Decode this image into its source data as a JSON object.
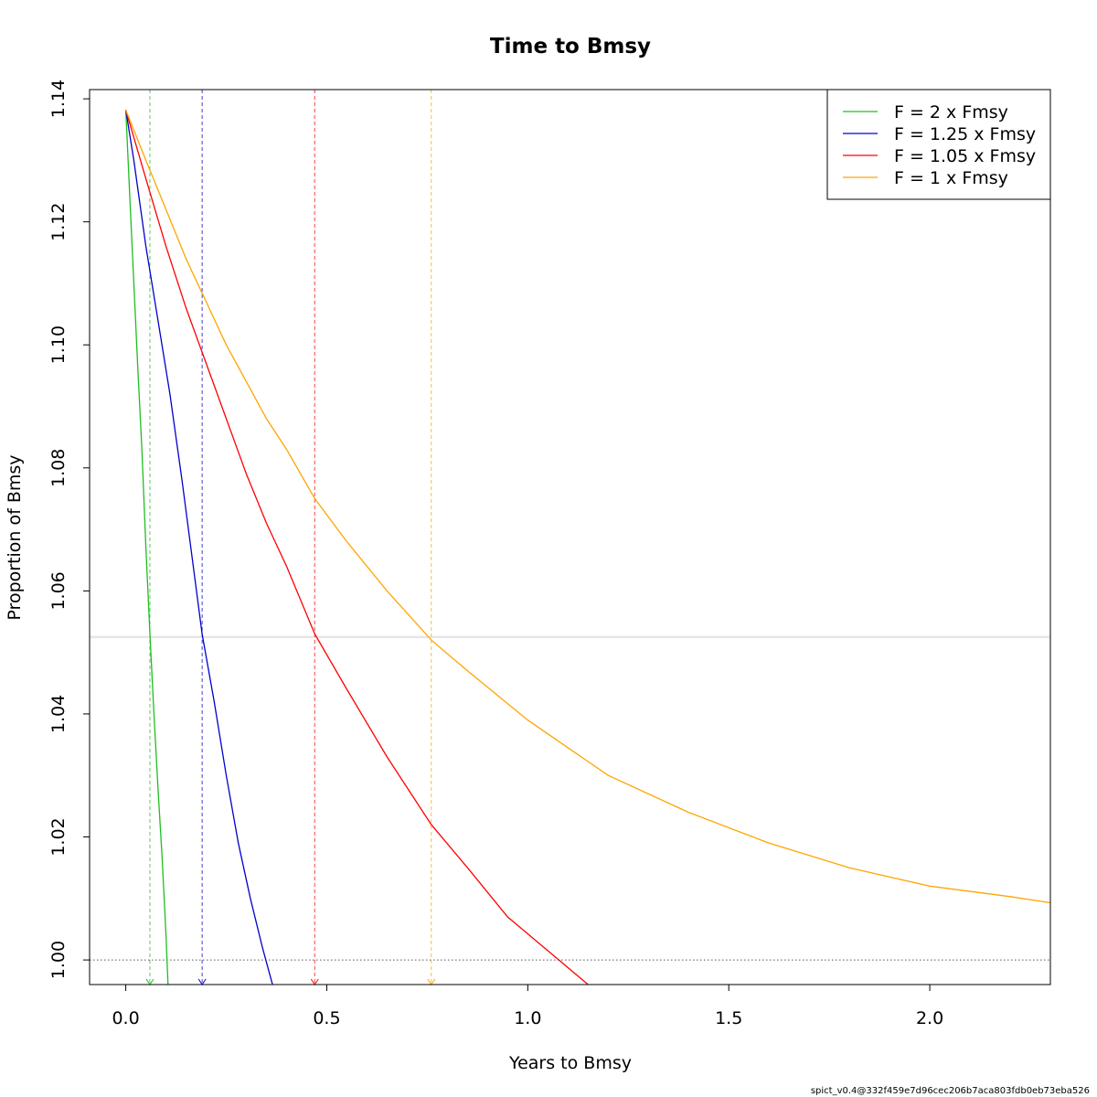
{
  "chart_data": {
    "type": "line",
    "title": "Time to Bmsy",
    "xlabel": "Years to Bmsy",
    "ylabel": "Proportion of Bmsy",
    "xlim": [
      -0.09,
      2.3
    ],
    "ylim": [
      0.996,
      1.1415
    ],
    "x_ticks": [
      0.0,
      0.5,
      1.0,
      1.5,
      2.0
    ],
    "x_tick_labels": [
      "0.0",
      "0.5",
      "1.0",
      "1.5",
      "2.0"
    ],
    "y_ticks": [
      1.0,
      1.02,
      1.04,
      1.06,
      1.08,
      1.1,
      1.12,
      1.14
    ],
    "y_tick_labels": [
      "1.00",
      "1.02",
      "1.04",
      "1.06",
      "1.08",
      "1.10",
      "1.12",
      "1.14"
    ],
    "grid": false,
    "legend_position": "top-right",
    "reference_lines": {
      "horizontal_gray": 1.0525,
      "horizontal_dotted": 1.0
    },
    "series": [
      {
        "name": "F = 2 x Fmsy",
        "color": "#1fbf1f",
        "vline_x": 0.06,
        "x": [
          0.0,
          0.01,
          0.02,
          0.03,
          0.04,
          0.05,
          0.06,
          0.07,
          0.08,
          0.09,
          0.1,
          0.105
        ],
        "y": [
          1.1382,
          1.124,
          1.11,
          1.096,
          1.083,
          1.067,
          1.053,
          1.04,
          1.028,
          1.017,
          1.004,
          0.996
        ]
      },
      {
        "name": "F = 1.25 x Fmsy",
        "color": "#0000cd",
        "vline_x": 0.19,
        "x": [
          0.0,
          0.02,
          0.05,
          0.08,
          0.11,
          0.14,
          0.17,
          0.19,
          0.22,
          0.25,
          0.28,
          0.31,
          0.34,
          0.365
        ],
        "y": [
          1.1382,
          1.13,
          1.116,
          1.104,
          1.092,
          1.078,
          1.063,
          1.053,
          1.042,
          1.03,
          1.019,
          1.01,
          1.002,
          0.996
        ]
      },
      {
        "name": "F = 1.05 x Fmsy",
        "color": "#ff0000",
        "x": [
          0.0,
          0.05,
          0.1,
          0.15,
          0.2,
          0.25,
          0.3,
          0.35,
          0.4,
          0.47,
          0.55,
          0.65,
          0.76,
          0.85,
          0.95,
          1.05,
          1.15
        ],
        "vline_x": 0.47,
        "y": [
          1.1382,
          1.127,
          1.116,
          1.106,
          1.097,
          1.088,
          1.079,
          1.071,
          1.064,
          1.053,
          1.044,
          1.033,
          1.022,
          1.015,
          1.007,
          1.0015,
          0.996
        ]
      },
      {
        "name": "F = 1 x Fmsy",
        "color": "#ffa500",
        "vline_x": 0.76,
        "x": [
          0.0,
          0.05,
          0.1,
          0.15,
          0.2,
          0.25,
          0.3,
          0.35,
          0.4,
          0.47,
          0.55,
          0.65,
          0.76,
          0.85,
          1.0,
          1.2,
          1.4,
          1.6,
          1.8,
          2.0,
          2.2,
          2.3
        ],
        "y": [
          1.1382,
          1.13,
          1.122,
          1.114,
          1.107,
          1.1,
          1.094,
          1.088,
          1.083,
          1.075,
          1.068,
          1.06,
          1.052,
          1.047,
          1.039,
          1.03,
          1.024,
          1.019,
          1.015,
          1.012,
          1.0103,
          1.0093
        ]
      }
    ]
  },
  "footer": "spict_v0.4@332f459e7d96cec206b7aca803fdb0eb73eba526"
}
